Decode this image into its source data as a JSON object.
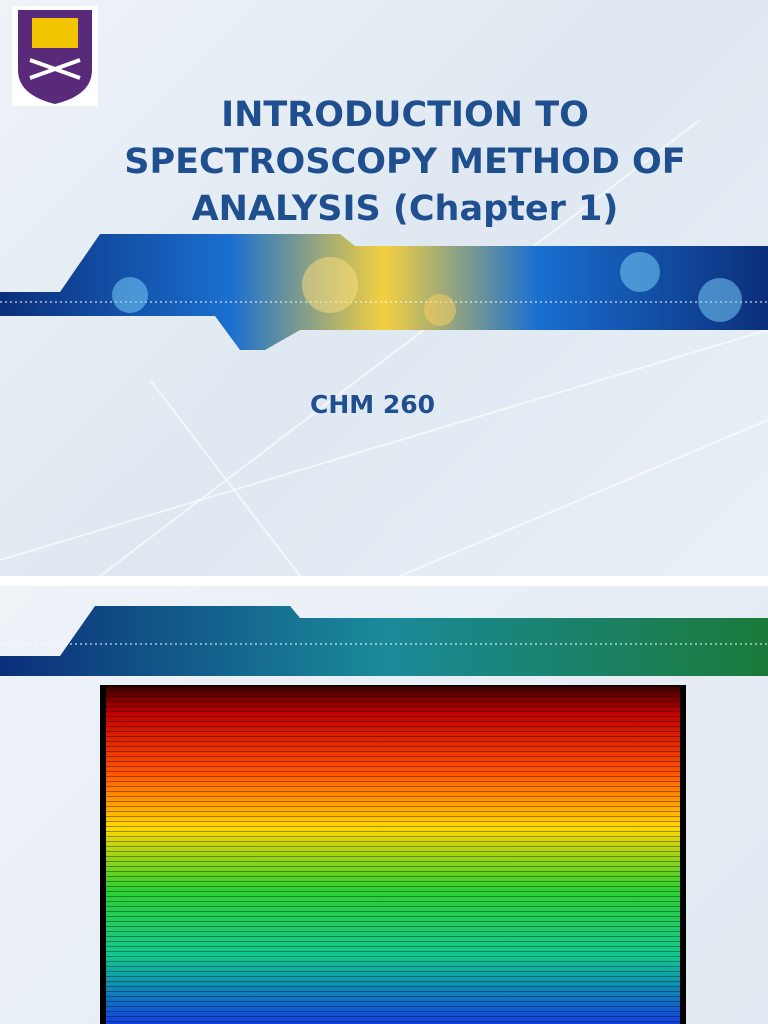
{
  "slide_1": {
    "title_lines": [
      "INTRODUCTION TO",
      "SPECTROSCOPY METHOD OF",
      "ANALYSIS (Chapter 1)"
    ],
    "subtitle": "CHM 260"
  }
}
